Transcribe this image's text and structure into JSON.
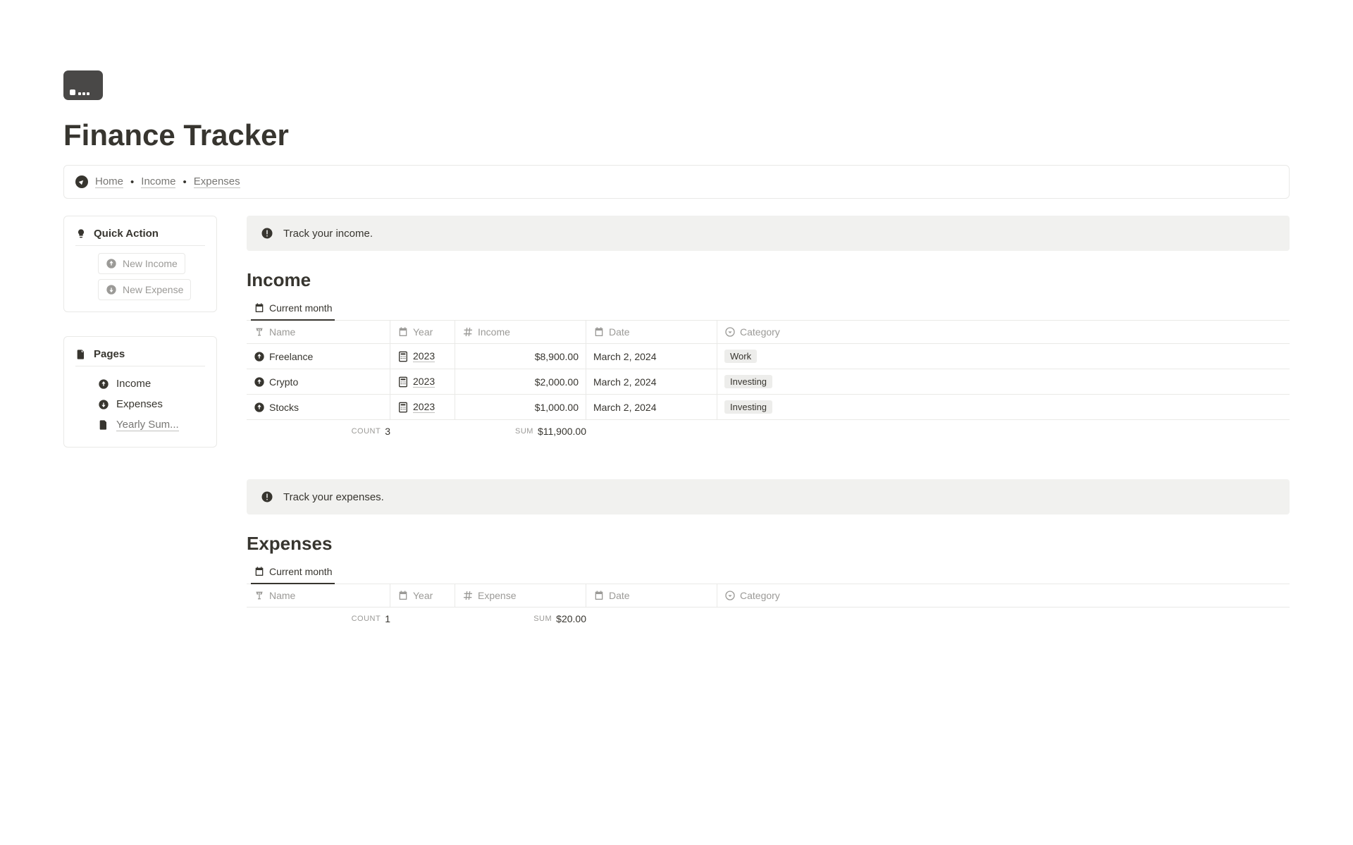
{
  "title": "Finance Tracker",
  "breadcrumb": {
    "home": "Home",
    "income": "Income",
    "expenses": "Expenses",
    "sep": "•"
  },
  "quickAction": {
    "title": "Quick Action",
    "newIncome": "New Income",
    "newExpense": "New Expense"
  },
  "pages": {
    "title": "Pages",
    "income": "Income",
    "expenses": "Expenses",
    "yearly": "Yearly Sum..."
  },
  "income": {
    "callout": "Track your income.",
    "title": "Income",
    "viewLabel": "Current month",
    "cols": {
      "name": "Name",
      "year": "Year",
      "amount": "Income",
      "date": "Date",
      "category": "Category"
    },
    "rows": [
      {
        "name": "Freelance",
        "year": "2023",
        "amount": "$8,900.00",
        "date": "March 2, 2024",
        "category": "Work"
      },
      {
        "name": "Crypto",
        "year": "2023",
        "amount": "$2,000.00",
        "date": "March 2, 2024",
        "category": "Investing"
      },
      {
        "name": "Stocks",
        "year": "2023",
        "amount": "$1,000.00",
        "date": "March 2, 2024",
        "category": "Investing"
      }
    ],
    "countLabel": "COUNT",
    "count": "3",
    "sumLabel": "SUM",
    "sum": "$11,900.00"
  },
  "expenses": {
    "callout": "Track your expenses.",
    "title": "Expenses",
    "viewLabel": "Current month",
    "cols": {
      "name": "Name",
      "year": "Year",
      "amount": "Expense",
      "date": "Date",
      "category": "Category"
    },
    "countLabel": "COUNT",
    "count": "1",
    "sumLabel": "SUM",
    "sum": "$20.00"
  }
}
